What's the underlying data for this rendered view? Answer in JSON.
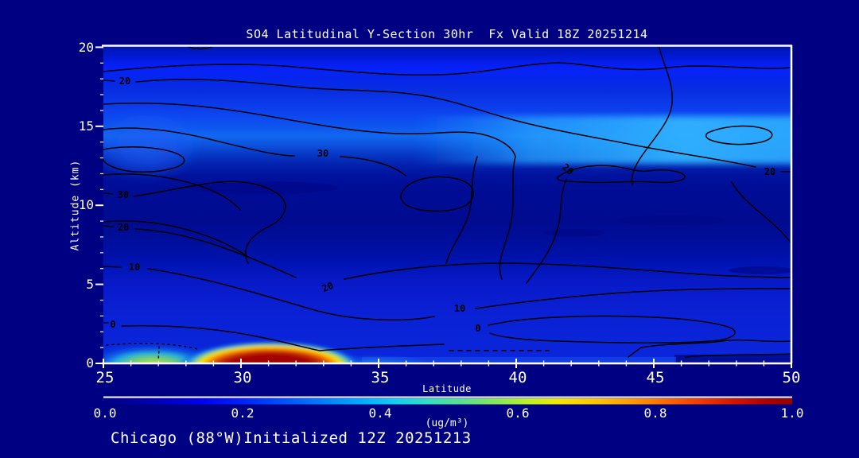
{
  "colors": {
    "background": "#000082",
    "text": "#ffffff",
    "axis": "#ffffff",
    "contour": "#000000",
    "plume_core": "#9e0000",
    "elevated_band": "#2fa8ff"
  },
  "header": {
    "title": "SO4 Latitudinal Y-Section 30hr  Fx Valid 18Z 20251214"
  },
  "footer": {
    "text": "Chicago (88°W)Initialized 12Z 20251213"
  },
  "chart_data": {
    "type": "heatmap",
    "title": "SO4 Latitudinal Y-Section 30hr  Fx Valid 18Z 20251214",
    "subtitle": "Chicago (88°W)Initialized 12Z 20251213",
    "xlabel": "Latitude",
    "ylabel": "Altitude (km)",
    "xlim": [
      25,
      50
    ],
    "ylim": [
      0,
      20
    ],
    "grid": false,
    "x_ticks": [
      25,
      30,
      35,
      40,
      45,
      50
    ],
    "x_tick_labels": [
      "25",
      "30",
      "35",
      "40",
      "45",
      "50"
    ],
    "x_minor_tick_step": 1,
    "y_ticks": [
      0,
      5,
      10,
      15,
      20
    ],
    "y_tick_labels_top_to_bottom": [
      "20",
      "15",
      "10",
      "5",
      "0"
    ],
    "y_minor_tick_step": 1,
    "colorbar": {
      "label": "(ug/m³)",
      "range": [
        0.0,
        1.0
      ],
      "tick_labels": [
        "0.0",
        "0.2",
        "0.4",
        "0.6",
        "0.8",
        "1.0"
      ],
      "palette_name": "jet",
      "palette_stops": [
        {
          "offset": 0.0,
          "color": "#000080"
        },
        {
          "offset": 0.07,
          "color": "#0000b0"
        },
        {
          "offset": 0.14,
          "color": "#0000f0"
        },
        {
          "offset": 0.2,
          "color": "#0020ff"
        },
        {
          "offset": 0.26,
          "color": "#0050ff"
        },
        {
          "offset": 0.32,
          "color": "#0080ff"
        },
        {
          "offset": 0.37,
          "color": "#00a8ff"
        },
        {
          "offset": 0.42,
          "color": "#10ccf0"
        },
        {
          "offset": 0.47,
          "color": "#30e0c0"
        },
        {
          "offset": 0.52,
          "color": "#58e090"
        },
        {
          "offset": 0.57,
          "color": "#88e858"
        },
        {
          "offset": 0.62,
          "color": "#c0f020"
        },
        {
          "offset": 0.66,
          "color": "#f0e800"
        },
        {
          "offset": 0.71,
          "color": "#ffc800"
        },
        {
          "offset": 0.76,
          "color": "#ffa000"
        },
        {
          "offset": 0.81,
          "color": "#ff7000"
        },
        {
          "offset": 0.86,
          "color": "#f44000"
        },
        {
          "offset": 0.91,
          "color": "#d81800"
        },
        {
          "offset": 0.96,
          "color": "#b00000"
        },
        {
          "offset": 1.0,
          "color": "#960000"
        }
      ]
    },
    "contour_levels": [
      0,
      10,
      20,
      30
    ],
    "contour_labels": [
      {
        "text": "20",
        "lat": 25.8,
        "alt_km": 17.9
      },
      {
        "text": "30",
        "lat": 33.0,
        "alt_km": 13.3
      },
      {
        "text": "30",
        "lat": 25.7,
        "alt_km": 10.7
      },
      {
        "text": "20",
        "lat": 25.7,
        "alt_km": 8.6
      },
      {
        "text": "10",
        "lat": 26.1,
        "alt_km": 6.1
      },
      {
        "text": "0",
        "lat": 25.4,
        "alt_km": 2.5
      },
      {
        "text": "20",
        "lat": 33.2,
        "alt_km": 4.8
      },
      {
        "text": "10",
        "lat": 38.0,
        "alt_km": 3.5
      },
      {
        "text": "0",
        "lat": 38.6,
        "alt_km": 2.2
      },
      {
        "text": "20",
        "lat": 41.9,
        "alt_km": 12.3
      },
      {
        "text": "20",
        "lat": 49.2,
        "alt_km": 12.1
      }
    ],
    "field": {
      "units": "ug/m3",
      "lat_grid": [
        25,
        27.5,
        30,
        32.5,
        35,
        37.5,
        40,
        42.5,
        45,
        47.5,
        50
      ],
      "alt_grid_km_top_to_bottom": [
        20,
        18,
        16,
        14,
        12,
        10,
        8,
        6,
        4,
        2,
        0
      ],
      "values_rows_top_to_bottom": [
        [
          0.15,
          0.15,
          0.15,
          0.15,
          0.15,
          0.15,
          0.15,
          0.15,
          0.15,
          0.15,
          0.15
        ],
        [
          0.18,
          0.2,
          0.22,
          0.2,
          0.2,
          0.2,
          0.2,
          0.2,
          0.2,
          0.2,
          0.2
        ],
        [
          0.2,
          0.2,
          0.22,
          0.25,
          0.25,
          0.22,
          0.22,
          0.25,
          0.25,
          0.25,
          0.25
        ],
        [
          0.25,
          0.28,
          0.25,
          0.3,
          0.32,
          0.35,
          0.38,
          0.38,
          0.4,
          0.38,
          0.4
        ],
        [
          0.3,
          0.25,
          0.2,
          0.15,
          0.15,
          0.15,
          0.18,
          0.2,
          0.2,
          0.22,
          0.2
        ],
        [
          0.12,
          0.1,
          0.08,
          0.08,
          0.08,
          0.08,
          0.08,
          0.1,
          0.1,
          0.1,
          0.1
        ],
        [
          0.08,
          0.06,
          0.05,
          0.05,
          0.05,
          0.05,
          0.06,
          0.08,
          0.08,
          0.08,
          0.08
        ],
        [
          0.1,
          0.1,
          0.1,
          0.08,
          0.08,
          0.08,
          0.1,
          0.1,
          0.12,
          0.12,
          0.1
        ],
        [
          0.15,
          0.15,
          0.12,
          0.12,
          0.12,
          0.12,
          0.15,
          0.15,
          0.15,
          0.15,
          0.15
        ],
        [
          0.18,
          0.18,
          0.18,
          0.15,
          0.15,
          0.15,
          0.18,
          0.18,
          0.18,
          0.18,
          0.18
        ],
        [
          0.35,
          0.6,
          1.0,
          1.0,
          0.45,
          0.2,
          0.15,
          0.15,
          0.15,
          0.12,
          0.12
        ]
      ],
      "features": {
        "surface_plume": {
          "lat_range": [
            29.3,
            33.2
          ],
          "alt_range_km": [
            0,
            0.9
          ],
          "peak_value": 1.0
        },
        "secondary_surface_patch": {
          "lat_range": [
            25,
            28.5
          ],
          "alt_range_km": [
            0,
            0.7
          ],
          "peak_value": 0.6
        },
        "elevated_light_band": {
          "lat_range": [
            36,
            50
          ],
          "alt_range_km": [
            13,
            15.5
          ],
          "value": 0.4
        }
      }
    }
  }
}
